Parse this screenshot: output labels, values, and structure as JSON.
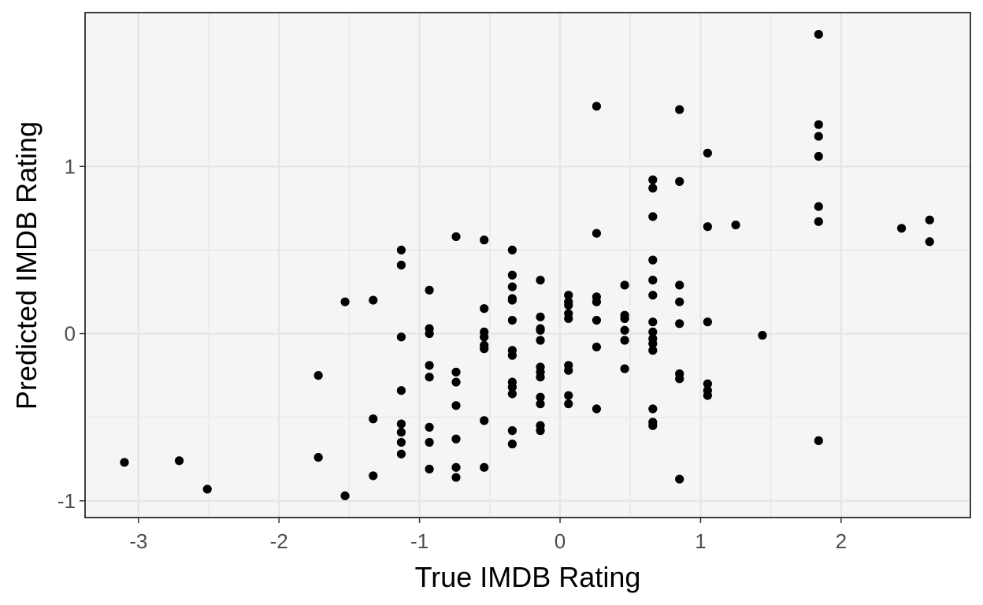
{
  "chart_data": {
    "type": "scatter",
    "xlabel": "True IMDB Rating",
    "ylabel": "Predicted IMDB Rating",
    "xlim": [
      -3.38,
      2.92
    ],
    "ylim": [
      -1.1,
      1.92
    ],
    "x_ticks": [
      -3,
      -2,
      -1,
      0,
      1,
      2
    ],
    "x_tick_labels": [
      "-3",
      "-2",
      "-1",
      "0",
      "1",
      "2"
    ],
    "y_ticks": [
      -1,
      0,
      1
    ],
    "y_tick_labels": [
      "-1",
      "0",
      "1"
    ],
    "grid": true,
    "colors": {
      "panel": "#f5f5f5",
      "grid": "#e6e6e6",
      "point": "#000000",
      "border": "#000000"
    },
    "points": [
      {
        "x": -3.1,
        "y": -0.77
      },
      {
        "x": -2.71,
        "y": -0.76
      },
      {
        "x": -2.51,
        "y": -0.93
      },
      {
        "x": -1.72,
        "y": -0.25
      },
      {
        "x": -1.72,
        "y": -0.74
      },
      {
        "x": -1.53,
        "y": 0.19
      },
      {
        "x": -1.53,
        "y": -0.97
      },
      {
        "x": -1.33,
        "y": 0.2
      },
      {
        "x": -1.33,
        "y": -0.51
      },
      {
        "x": -1.33,
        "y": -0.85
      },
      {
        "x": -1.13,
        "y": 0.5
      },
      {
        "x": -1.13,
        "y": 0.41
      },
      {
        "x": -1.13,
        "y": -0.02
      },
      {
        "x": -1.13,
        "y": -0.34
      },
      {
        "x": -1.13,
        "y": -0.54
      },
      {
        "x": -1.13,
        "y": -0.59
      },
      {
        "x": -1.13,
        "y": -0.65
      },
      {
        "x": -1.13,
        "y": -0.72
      },
      {
        "x": -0.93,
        "y": 0.26
      },
      {
        "x": -0.93,
        "y": 0.03
      },
      {
        "x": -0.93,
        "y": 0.0
      },
      {
        "x": -0.93,
        "y": -0.19
      },
      {
        "x": -0.93,
        "y": -0.26
      },
      {
        "x": -0.93,
        "y": -0.56
      },
      {
        "x": -0.93,
        "y": -0.65
      },
      {
        "x": -0.93,
        "y": -0.81
      },
      {
        "x": -0.74,
        "y": 0.58
      },
      {
        "x": -0.74,
        "y": -0.23
      },
      {
        "x": -0.74,
        "y": -0.29
      },
      {
        "x": -0.74,
        "y": -0.43
      },
      {
        "x": -0.74,
        "y": -0.63
      },
      {
        "x": -0.74,
        "y": -0.8
      },
      {
        "x": -0.74,
        "y": -0.86
      },
      {
        "x": -0.54,
        "y": 0.56
      },
      {
        "x": -0.54,
        "y": 0.15
      },
      {
        "x": -0.54,
        "y": 0.01
      },
      {
        "x": -0.54,
        "y": -0.02
      },
      {
        "x": -0.54,
        "y": -0.07
      },
      {
        "x": -0.54,
        "y": -0.09
      },
      {
        "x": -0.54,
        "y": -0.52
      },
      {
        "x": -0.54,
        "y": -0.8
      },
      {
        "x": -0.34,
        "y": 0.5
      },
      {
        "x": -0.34,
        "y": 0.35
      },
      {
        "x": -0.34,
        "y": 0.28
      },
      {
        "x": -0.34,
        "y": 0.21
      },
      {
        "x": -0.34,
        "y": 0.2
      },
      {
        "x": -0.34,
        "y": 0.08
      },
      {
        "x": -0.34,
        "y": -0.1
      },
      {
        "x": -0.34,
        "y": -0.13
      },
      {
        "x": -0.34,
        "y": -0.29
      },
      {
        "x": -0.34,
        "y": -0.32
      },
      {
        "x": -0.34,
        "y": -0.36
      },
      {
        "x": -0.34,
        "y": -0.58
      },
      {
        "x": -0.34,
        "y": -0.66
      },
      {
        "x": -0.14,
        "y": 0.32
      },
      {
        "x": -0.14,
        "y": 0.1
      },
      {
        "x": -0.14,
        "y": 0.03
      },
      {
        "x": -0.14,
        "y": 0.02
      },
      {
        "x": -0.14,
        "y": -0.04
      },
      {
        "x": -0.14,
        "y": -0.2
      },
      {
        "x": -0.14,
        "y": -0.23
      },
      {
        "x": -0.14,
        "y": -0.26
      },
      {
        "x": -0.14,
        "y": -0.38
      },
      {
        "x": -0.14,
        "y": -0.42
      },
      {
        "x": -0.14,
        "y": -0.55
      },
      {
        "x": -0.14,
        "y": -0.58
      },
      {
        "x": 0.06,
        "y": 0.23
      },
      {
        "x": 0.06,
        "y": 0.19
      },
      {
        "x": 0.06,
        "y": 0.17
      },
      {
        "x": 0.06,
        "y": 0.12
      },
      {
        "x": 0.06,
        "y": 0.09
      },
      {
        "x": 0.06,
        "y": -0.19
      },
      {
        "x": 0.06,
        "y": -0.22
      },
      {
        "x": 0.06,
        "y": -0.37
      },
      {
        "x": 0.06,
        "y": -0.42
      },
      {
        "x": 0.26,
        "y": 1.36
      },
      {
        "x": 0.26,
        "y": 0.6
      },
      {
        "x": 0.26,
        "y": 0.22
      },
      {
        "x": 0.26,
        "y": 0.19
      },
      {
        "x": 0.26,
        "y": 0.08
      },
      {
        "x": 0.26,
        "y": -0.08
      },
      {
        "x": 0.26,
        "y": -0.45
      },
      {
        "x": 0.46,
        "y": 0.29
      },
      {
        "x": 0.46,
        "y": 0.11
      },
      {
        "x": 0.46,
        "y": 0.09
      },
      {
        "x": 0.46,
        "y": 0.02
      },
      {
        "x": 0.46,
        "y": -0.04
      },
      {
        "x": 0.46,
        "y": -0.21
      },
      {
        "x": 0.66,
        "y": 0.92
      },
      {
        "x": 0.66,
        "y": 0.87
      },
      {
        "x": 0.66,
        "y": 0.7
      },
      {
        "x": 0.66,
        "y": 0.44
      },
      {
        "x": 0.66,
        "y": 0.32
      },
      {
        "x": 0.66,
        "y": 0.23
      },
      {
        "x": 0.66,
        "y": 0.07
      },
      {
        "x": 0.66,
        "y": 0.01
      },
      {
        "x": 0.66,
        "y": -0.03
      },
      {
        "x": 0.66,
        "y": -0.06
      },
      {
        "x": 0.66,
        "y": -0.1
      },
      {
        "x": 0.66,
        "y": -0.45
      },
      {
        "x": 0.66,
        "y": -0.53
      },
      {
        "x": 0.66,
        "y": -0.55
      },
      {
        "x": 0.85,
        "y": 1.34
      },
      {
        "x": 0.85,
        "y": 0.91
      },
      {
        "x": 0.85,
        "y": 0.29
      },
      {
        "x": 0.85,
        "y": 0.19
      },
      {
        "x": 0.85,
        "y": 0.06
      },
      {
        "x": 0.85,
        "y": -0.24
      },
      {
        "x": 0.85,
        "y": -0.27
      },
      {
        "x": 0.85,
        "y": -0.87
      },
      {
        "x": 1.05,
        "y": 1.08
      },
      {
        "x": 1.05,
        "y": 0.64
      },
      {
        "x": 1.05,
        "y": 0.07
      },
      {
        "x": 1.05,
        "y": -0.3
      },
      {
        "x": 1.05,
        "y": -0.34
      },
      {
        "x": 1.05,
        "y": -0.37
      },
      {
        "x": 1.25,
        "y": 0.65
      },
      {
        "x": 1.44,
        "y": -0.01
      },
      {
        "x": 1.84,
        "y": 1.79
      },
      {
        "x": 1.84,
        "y": 1.25
      },
      {
        "x": 1.84,
        "y": 1.18
      },
      {
        "x": 1.84,
        "y": 1.06
      },
      {
        "x": 1.84,
        "y": 0.76
      },
      {
        "x": 1.84,
        "y": 0.67
      },
      {
        "x": 1.84,
        "y": -0.64
      },
      {
        "x": 2.43,
        "y": 0.63
      },
      {
        "x": 2.63,
        "y": 0.68
      },
      {
        "x": 2.63,
        "y": 0.55
      }
    ]
  }
}
